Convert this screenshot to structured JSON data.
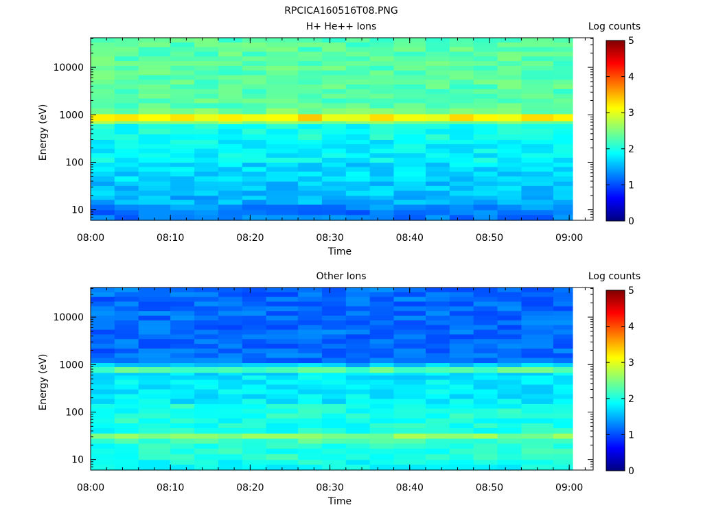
{
  "figure_title": "RPCICA160516T08.PNG",
  "chart_data": [
    {
      "type": "heatmap",
      "title": "H+ He++ Ions",
      "xlabel": "Time",
      "ylabel": "Energy (eV)",
      "yscale": "log",
      "ylim": [
        6,
        42000
      ],
      "xlim": [
        "08:00",
        "09:03"
      ],
      "x_ticks": [
        "08:00",
        "08:10",
        "08:20",
        "08:30",
        "08:40",
        "08:50",
        "09:00"
      ],
      "y_ticks": [
        "10",
        "100",
        "1000",
        "10000"
      ],
      "colorbar": {
        "label": "Log counts",
        "range": [
          0,
          5
        ],
        "ticks": [
          "0",
          "1",
          "2",
          "3",
          "4",
          "5"
        ]
      },
      "time_bins": [
        "08:00",
        "08:03",
        "08:06",
        "08:10",
        "08:13",
        "08:16",
        "08:19",
        "08:22",
        "08:26",
        "08:29",
        "08:32",
        "08:35",
        "08:38",
        "08:42",
        "08:45",
        "08:48",
        "08:51",
        "08:54",
        "08:58"
      ],
      "energy_bands": [
        {
          "e_low": 6,
          "e_high": 10,
          "log_counts": 1.2
        },
        {
          "e_low": 10,
          "e_high": 13,
          "log_counts": 1.3
        },
        {
          "e_low": 13,
          "e_high": 20,
          "log_counts": 1.5
        },
        {
          "e_low": 20,
          "e_high": 40,
          "log_counts": 1.6
        },
        {
          "e_low": 40,
          "e_high": 100,
          "log_counts": 1.7
        },
        {
          "e_low": 100,
          "e_high": 300,
          "log_counts": 1.85
        },
        {
          "e_low": 300,
          "e_high": 650,
          "log_counts": 1.95
        },
        {
          "e_low": 650,
          "e_high": 750,
          "log_counts": 2.55
        },
        {
          "e_low": 750,
          "e_high": 1050,
          "log_counts": 3.2
        },
        {
          "e_low": 1050,
          "e_high": 1400,
          "log_counts": 2.45
        },
        {
          "e_low": 1400,
          "e_high": 42000,
          "log_counts": 2.3
        }
      ]
    },
    {
      "type": "heatmap",
      "title": "Other Ions",
      "xlabel": "Time",
      "ylabel": "Energy (eV)",
      "yscale": "log",
      "ylim": [
        6,
        42000
      ],
      "xlim": [
        "08:00",
        "09:03"
      ],
      "x_ticks": [
        "08:00",
        "08:10",
        "08:20",
        "08:30",
        "08:40",
        "08:50",
        "09:00"
      ],
      "y_ticks": [
        "10",
        "100",
        "1000",
        "10000"
      ],
      "colorbar": {
        "label": "Log counts",
        "range": [
          0,
          5
        ],
        "ticks": [
          "0",
          "1",
          "2",
          "3",
          "4",
          "5"
        ]
      },
      "time_bins": [
        "08:00",
        "08:03",
        "08:06",
        "08:10",
        "08:13",
        "08:16",
        "08:19",
        "08:22",
        "08:26",
        "08:29",
        "08:32",
        "08:35",
        "08:38",
        "08:42",
        "08:45",
        "08:48",
        "08:51",
        "08:54",
        "08:58"
      ],
      "energy_bands": [
        {
          "e_low": 6,
          "e_high": 10,
          "log_counts": 1.95
        },
        {
          "e_low": 10,
          "e_high": 22,
          "log_counts": 2.05
        },
        {
          "e_low": 22,
          "e_high": 28,
          "log_counts": 2.2
        },
        {
          "e_low": 28,
          "e_high": 36,
          "log_counts": 2.55
        },
        {
          "e_low": 36,
          "e_high": 150,
          "log_counts": 2.0
        },
        {
          "e_low": 150,
          "e_high": 600,
          "log_counts": 1.8
        },
        {
          "e_low": 600,
          "e_high": 680,
          "log_counts": 1.75
        },
        {
          "e_low": 680,
          "e_high": 900,
          "log_counts": 2.3
        },
        {
          "e_low": 900,
          "e_high": 1100,
          "log_counts": 1.6
        },
        {
          "e_low": 1100,
          "e_high": 42000,
          "log_counts": 1.15
        }
      ]
    }
  ]
}
